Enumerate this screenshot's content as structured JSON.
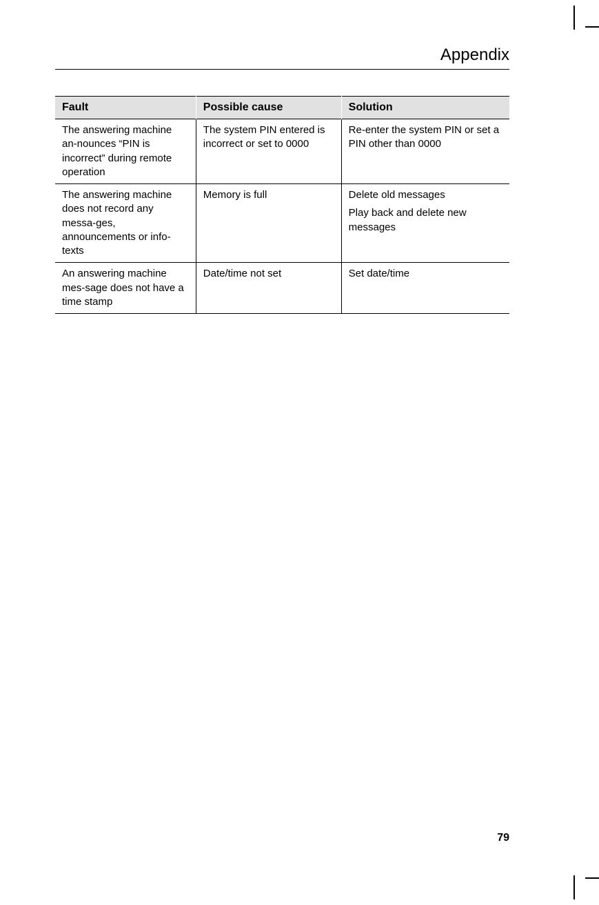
{
  "page": {
    "title": "Appendix",
    "number": "79"
  },
  "table": {
    "type": "table",
    "background_color_header": "#e1e1e1",
    "border_color": "#000000",
    "font_size_header": 16,
    "font_size_body": 15,
    "columns": [
      {
        "label": "Fault",
        "width_pct": 31
      },
      {
        "label": "Possible cause",
        "width_pct": 32
      },
      {
        "label": "Solution",
        "width_pct": 37
      }
    ],
    "rows": [
      {
        "fault": "The answering machine an-nounces “PIN is incorrect” during remote operation",
        "cause": "The system PIN entered is incorrect or set to 0000",
        "solution": [
          "Re-enter the system PIN or set a PIN other than 0000"
        ]
      },
      {
        "fault": "The answering machine does not record any messa-ges, announcements or info-texts",
        "cause": "Memory is full",
        "solution": [
          "Delete old messages",
          "Play back and delete new messages"
        ]
      },
      {
        "fault": "An answering machine mes-sage does not have a time stamp",
        "cause": "Date/time not set",
        "solution": [
          "Set date/time"
        ]
      }
    ]
  },
  "colors": {
    "page_bg": "#ffffff",
    "text": "#000000",
    "header_bg": "#e1e1e1",
    "border": "#000000"
  }
}
